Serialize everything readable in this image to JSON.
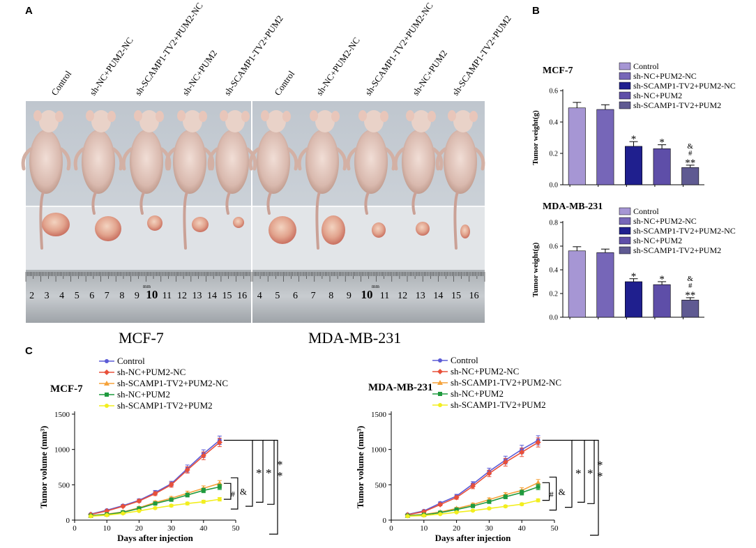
{
  "panel_labels": {
    "a": "A",
    "b": "B",
    "c": "C"
  },
  "photo": {
    "group_labels": [
      "Control",
      "sh-NC+PUM2-NC",
      "sh-SCAMP1-TV2+PUM2-NC",
      "sh-NC+PUM2",
      "sh-SCAMP1-TV2+PUM2"
    ],
    "mcf7_label": "MCF-7",
    "mda_label": "MDA-MB-231",
    "ruler_numbers_left": [
      "2",
      "3",
      "4",
      "5",
      "6",
      "7",
      "8",
      "9",
      "10",
      "11",
      "12",
      "13",
      "14",
      "15",
      "16"
    ],
    "ruler_numbers_right": [
      "4",
      "5",
      "6",
      "7",
      "8",
      "9",
      "10",
      "11",
      "12",
      "13",
      "14",
      "15",
      "16"
    ],
    "ruler_unit": "mm"
  },
  "colors": {
    "control": "#a696d4",
    "shnc_pum2nc": "#7666b8",
    "shscamp_pum2nc": "#1f1f8e",
    "shnc_pum2": "#5e4ea8",
    "shscamp_pum2": "#5f5a92",
    "line_control": "#5b5bd6",
    "line_shnc_pum2nc": "#e8503a",
    "line_shscamp_pum2nc": "#f5a23a",
    "line_shnc_pum2": "#1f9a3e",
    "line_shscamp_pum2": "#f2ee1e"
  },
  "chart_data": [
    {
      "id": "b_mcf7",
      "type": "bar",
      "title": "MCF-7",
      "ylabel": "Tumor weight(g)",
      "ylim": [
        0,
        0.6
      ],
      "yticks": [
        "0.0",
        "0.2",
        "0.4",
        "0.6"
      ],
      "categories": [
        "Control",
        "sh-NC+PUM2-NC",
        "sh-SCAMP1-TV2+PUM2-NC",
        "sh-NC+PUM2",
        "sh-SCAMP1-TV2+PUM2"
      ],
      "values": [
        0.49,
        0.48,
        0.245,
        0.23,
        0.11
      ],
      "errors": [
        0.035,
        0.03,
        0.03,
        0.025,
        0.015
      ],
      "annotations": [
        "",
        "",
        "*",
        "*",
        "**"
      ],
      "annotations_hash": [
        "",
        "",
        "",
        "",
        "#"
      ],
      "annotations_amp": [
        "",
        "",
        "",
        "",
        "&"
      ]
    },
    {
      "id": "b_mda",
      "type": "bar",
      "title": "MDA-MB-231",
      "ylabel": "Tumor weight(g)",
      "ylim": [
        0,
        0.8
      ],
      "yticks": [
        "0.0",
        "0.2",
        "0.4",
        "0.6",
        "0.8"
      ],
      "categories": [
        "Control",
        "sh-NC+PUM2-NC",
        "sh-SCAMP1-TV2+PUM2-NC",
        "sh-NC+PUM2",
        "sh-SCAMP1-TV2+PUM2"
      ],
      "values": [
        0.56,
        0.545,
        0.3,
        0.275,
        0.145
      ],
      "errors": [
        0.035,
        0.03,
        0.025,
        0.025,
        0.02
      ],
      "annotations": [
        "",
        "",
        "*",
        "*",
        "**"
      ],
      "annotations_hash": [
        "",
        "",
        "",
        "",
        "#"
      ],
      "annotations_amp": [
        "",
        "",
        "",
        "",
        "&"
      ]
    },
    {
      "id": "c_mcf7",
      "type": "line",
      "title": "MCF-7",
      "xlabel": "Days after injection",
      "ylabel": "Tumor volume (mm³)",
      "xlim": [
        0,
        50
      ],
      "ylim": [
        0,
        1500
      ],
      "xticks": [
        "0",
        "10",
        "20",
        "30",
        "40",
        "50"
      ],
      "yticks": [
        "0",
        "500",
        "1000",
        "1500"
      ],
      "x": [
        5,
        10,
        15,
        20,
        25,
        30,
        35,
        40,
        45
      ],
      "series": [
        {
          "name": "Control",
          "values": [
            85,
            140,
            205,
            280,
            390,
            515,
            730,
            940,
            1130
          ],
          "errors": [
            8,
            12,
            15,
            20,
            30,
            35,
            50,
            55,
            60
          ]
        },
        {
          "name": "sh-NC+PUM2-NC",
          "values": [
            80,
            130,
            195,
            270,
            375,
            500,
            710,
            910,
            1100
          ],
          "errors": [
            8,
            12,
            15,
            20,
            28,
            35,
            45,
            55,
            60
          ]
        },
        {
          "name": "sh-SCAMP1-TV2+PUM2-NC",
          "values": [
            65,
            85,
            115,
            175,
            250,
            310,
            380,
            450,
            520
          ],
          "errors": [
            6,
            8,
            10,
            15,
            22,
            25,
            30,
            35,
            40
          ]
        },
        {
          "name": "sh-NC+PUM2",
          "values": [
            62,
            80,
            110,
            165,
            235,
            290,
            355,
            420,
            470
          ],
          "errors": [
            6,
            8,
            10,
            15,
            20,
            25,
            28,
            32,
            38
          ]
        },
        {
          "name": "sh-SCAMP1-TV2+PUM2",
          "values": [
            55,
            70,
            95,
            130,
            170,
            205,
            235,
            260,
            295
          ],
          "errors": [
            5,
            7,
            8,
            10,
            14,
            18,
            20,
            22,
            25
          ]
        }
      ],
      "sig_labels": [
        "*",
        "*",
        "*",
        "*",
        "#",
        "&"
      ]
    },
    {
      "id": "c_mda",
      "type": "line",
      "title": "MDA-MB-231",
      "xlabel": "Days after injection",
      "ylabel": "Tumor volume (mm³)",
      "xlim": [
        0,
        50
      ],
      "ylim": [
        0,
        1500
      ],
      "xticks": [
        "0",
        "10",
        "20",
        "30",
        "40",
        "50"
      ],
      "yticks": [
        "0",
        "500",
        "1000",
        "1500"
      ],
      "x": [
        5,
        10,
        15,
        20,
        25,
        30,
        35,
        40,
        45
      ],
      "series": [
        {
          "name": "Control",
          "values": [
            80,
            130,
            240,
            340,
            510,
            690,
            850,
            1000,
            1130
          ],
          "errors": [
            8,
            12,
            18,
            25,
            35,
            45,
            55,
            60,
            65
          ]
        },
        {
          "name": "sh-NC+PUM2-NC",
          "values": [
            75,
            120,
            220,
            320,
            480,
            660,
            820,
            960,
            1100
          ],
          "errors": [
            8,
            12,
            18,
            25,
            35,
            45,
            55,
            60,
            65
          ]
        },
        {
          "name": "sh-SCAMP1-TV2+PUM2-NC",
          "values": [
            65,
            80,
            115,
            165,
            220,
            290,
            360,
            420,
            530
          ],
          "errors": [
            6,
            8,
            10,
            15,
            20,
            25,
            30,
            40,
            45
          ]
        },
        {
          "name": "sh-NC+PUM2",
          "values": [
            62,
            75,
            105,
            150,
            200,
            260,
            330,
            390,
            470
          ],
          "errors": [
            6,
            8,
            10,
            14,
            18,
            24,
            28,
            35,
            40
          ]
        },
        {
          "name": "sh-SCAMP1-TV2+PUM2",
          "values": [
            55,
            65,
            85,
            110,
            135,
            165,
            195,
            225,
            280
          ],
          "errors": [
            5,
            6,
            8,
            10,
            12,
            14,
            16,
            18,
            22
          ]
        }
      ],
      "sig_labels": [
        "*",
        "*",
        "*",
        "*",
        "#",
        "&"
      ]
    }
  ]
}
